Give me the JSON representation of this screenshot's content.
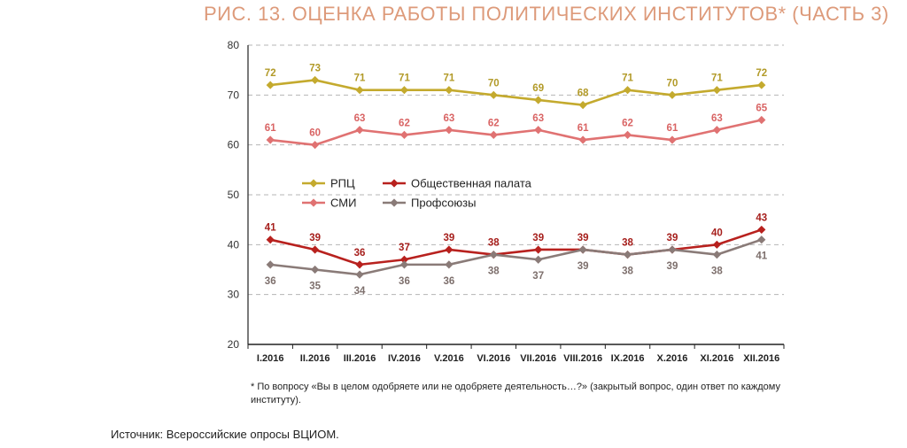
{
  "title": "РИС. 13. ОЦЕНКА РАБОТЫ ПОЛИТИЧЕСКИХ ИНСТИТУТОВ* (ЧАСТЬ 3)",
  "footnote": "* По вопросу «Вы в целом одобряете или не одобряете деятельность…?» (закрытый вопрос, один ответ по каждому институту).",
  "source": "Источник: Всероссийские опросы ВЦИОМ.",
  "chart_data": {
    "type": "line",
    "categories": [
      "I.2016",
      "II.2016",
      "III.2016",
      "IV.2016",
      "V.2016",
      "VI.2016",
      "VII.2016",
      "VIII.2016",
      "IX.2016",
      "X.2016",
      "XI.2016",
      "XII.2016"
    ],
    "ylim": [
      20,
      80
    ],
    "yticks": [
      20,
      30,
      40,
      50,
      60,
      70,
      80
    ],
    "grid": true,
    "legend_position": "center-left",
    "series": [
      {
        "name": "РПЦ",
        "color": "#c4aa2e",
        "label_position": "above",
        "label_color": "#b29a28",
        "values": [
          72,
          73,
          71,
          71,
          71,
          70,
          69,
          68,
          71,
          70,
          71,
          72
        ]
      },
      {
        "name": "СМИ",
        "color": "#e07272",
        "label_position": "above",
        "label_color": "#d96464",
        "values": [
          61,
          60,
          63,
          62,
          63,
          62,
          63,
          61,
          62,
          61,
          63,
          65
        ]
      },
      {
        "name": "Общественная палата",
        "color": "#b8211e",
        "label_position": "above",
        "label_color": "#a61e1b",
        "values": [
          41,
          39,
          36,
          37,
          39,
          38,
          39,
          39,
          38,
          39,
          40,
          43
        ]
      },
      {
        "name": "Профсоюзы",
        "color": "#8a7b78",
        "label_position": "below",
        "label_color": "#7d6f6c",
        "values": [
          36,
          35,
          34,
          36,
          36,
          38,
          37,
          39,
          38,
          39,
          38,
          41
        ]
      }
    ]
  }
}
